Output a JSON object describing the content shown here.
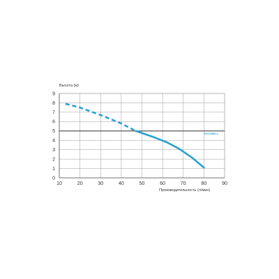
{
  "chart_data": {
    "type": "line",
    "title": "",
    "xlabel": "Производительность (л/мин)",
    "ylabel": "Высота (м)",
    "xlim": [
      10,
      90
    ],
    "ylim": [
      0,
      9
    ],
    "x_ticks": [
      "10",
      "20",
      "30",
      "40",
      "50",
      "60",
      "70",
      "80",
      "90"
    ],
    "y_ticks": [
      "0",
      "1",
      "2",
      "3",
      "4",
      "5",
      "6",
      "7",
      "8",
      "9"
    ],
    "grid": true,
    "reference_line": {
      "y": 5,
      "label": "EV12060-1",
      "color": "#111111"
    },
    "series": [
      {
        "name": "EV12060-1",
        "color": "#2a9fd0",
        "dashed": {
          "x": [
            13,
            20,
            30,
            40,
            47
          ],
          "y": [
            7.9,
            7.5,
            6.7,
            5.8,
            5.0
          ]
        },
        "solid": {
          "x": [
            47,
            55,
            62,
            68,
            74,
            80
          ],
          "y": [
            5.0,
            4.4,
            3.8,
            3.1,
            2.2,
            1.1
          ]
        }
      }
    ]
  }
}
